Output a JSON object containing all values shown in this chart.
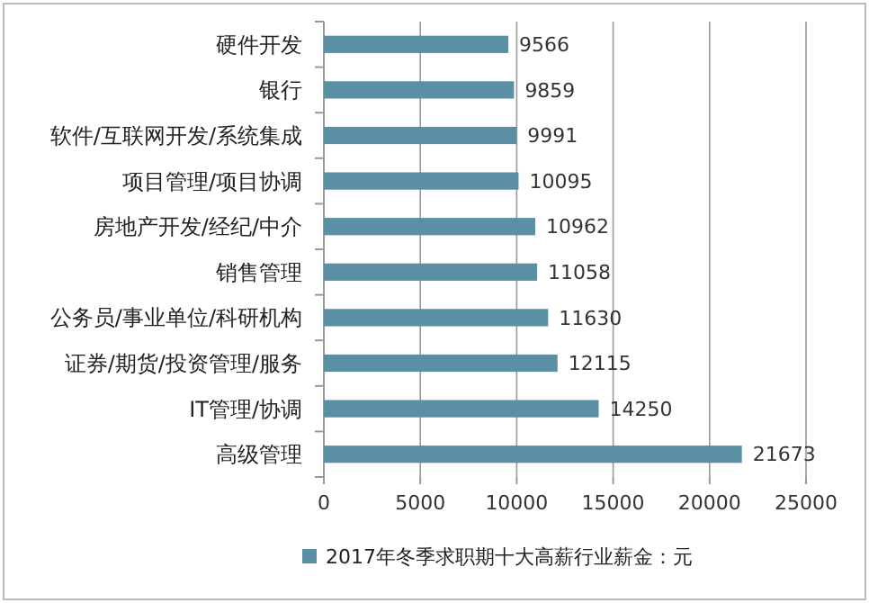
{
  "chart_data": {
    "type": "bar",
    "orientation": "horizontal",
    "categories": [
      "硬件开发",
      "银行",
      "软件/互联网开发/系统集成",
      "项目管理/项目协调",
      "房地产开发/经纪/中介",
      "销售管理",
      "公务员/事业单位/科研机构",
      "证券/期货/投资管理/服务",
      "IT管理/协调",
      "高级管理"
    ],
    "series": [
      {
        "name": "2017年冬季求职期十大高薪行业薪金：元",
        "color": "#5b8fa3",
        "values": [
          9566,
          9859,
          9991,
          10095,
          10962,
          11058,
          11630,
          12115,
          14250,
          21673
        ]
      }
    ],
    "xlim": [
      0,
      25000
    ],
    "xticks": [
      0,
      5000,
      10000,
      15000,
      20000,
      25000
    ],
    "grid": "x",
    "data_labels": true,
    "legend": "bottom"
  }
}
